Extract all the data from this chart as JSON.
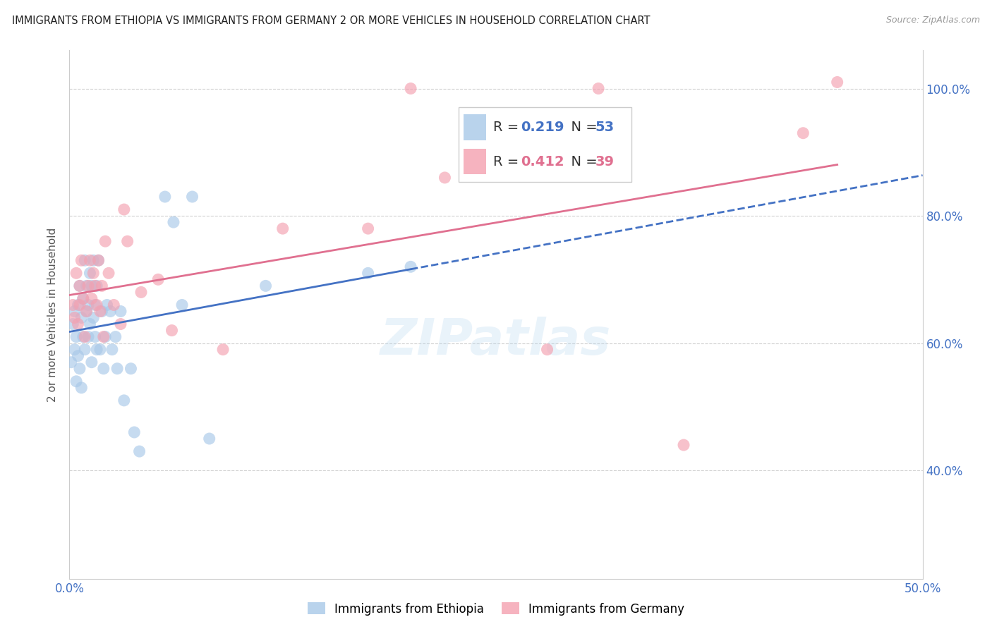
{
  "title": "IMMIGRANTS FROM ETHIOPIA VS IMMIGRANTS FROM GERMANY 2 OR MORE VEHICLES IN HOUSEHOLD CORRELATION CHART",
  "source": "Source: ZipAtlas.com",
  "ylabel": "2 or more Vehicles in Household",
  "xlim": [
    0.0,
    0.5
  ],
  "ylim": [
    0.23,
    1.06
  ],
  "x_tick_pos": [
    0.0,
    0.1,
    0.2,
    0.3,
    0.4,
    0.5
  ],
  "x_tick_labels": [
    "0.0%",
    "",
    "",
    "",
    "",
    "50.0%"
  ],
  "y_tick_pos": [
    0.4,
    0.6,
    0.8,
    1.0
  ],
  "y_tick_labels": [
    "40.0%",
    "60.0%",
    "80.0%",
    "100.0%"
  ],
  "legend_label1": "Immigrants from Ethiopia",
  "legend_label2": "Immigrants from Germany",
  "R1": "0.219",
  "N1": "53",
  "R2": "0.412",
  "N2": "39",
  "color1": "#a8c8e8",
  "color2": "#f4a0b0",
  "line_color1": "#4472c4",
  "line_color2": "#e07090",
  "watermark": "ZIPatlas",
  "ethiopia_x": [
    0.001,
    0.002,
    0.003,
    0.003,
    0.004,
    0.004,
    0.005,
    0.005,
    0.006,
    0.006,
    0.007,
    0.007,
    0.008,
    0.008,
    0.009,
    0.009,
    0.01,
    0.01,
    0.011,
    0.011,
    0.012,
    0.012,
    0.013,
    0.013,
    0.014,
    0.014,
    0.015,
    0.015,
    0.016,
    0.016,
    0.017,
    0.018,
    0.019,
    0.02,
    0.021,
    0.022,
    0.024,
    0.025,
    0.027,
    0.028,
    0.03,
    0.032,
    0.036,
    0.038,
    0.041,
    0.056,
    0.061,
    0.066,
    0.072,
    0.082,
    0.115,
    0.175,
    0.2
  ],
  "ethiopia_y": [
    0.57,
    0.63,
    0.59,
    0.65,
    0.54,
    0.61,
    0.58,
    0.66,
    0.56,
    0.69,
    0.64,
    0.53,
    0.67,
    0.61,
    0.59,
    0.73,
    0.65,
    0.69,
    0.61,
    0.66,
    0.71,
    0.63,
    0.57,
    0.69,
    0.73,
    0.64,
    0.61,
    0.66,
    0.59,
    0.69,
    0.73,
    0.59,
    0.65,
    0.56,
    0.61,
    0.66,
    0.65,
    0.59,
    0.61,
    0.56,
    0.65,
    0.51,
    0.56,
    0.46,
    0.43,
    0.83,
    0.79,
    0.66,
    0.83,
    0.45,
    0.69,
    0.71,
    0.72
  ],
  "germany_x": [
    0.002,
    0.003,
    0.004,
    0.005,
    0.006,
    0.006,
    0.007,
    0.008,
    0.009,
    0.01,
    0.011,
    0.012,
    0.013,
    0.014,
    0.015,
    0.016,
    0.017,
    0.018,
    0.019,
    0.02,
    0.021,
    0.023,
    0.026,
    0.03,
    0.032,
    0.034,
    0.042,
    0.052,
    0.06,
    0.09,
    0.125,
    0.175,
    0.2,
    0.22,
    0.28,
    0.31,
    0.36,
    0.43,
    0.45
  ],
  "germany_y": [
    0.66,
    0.64,
    0.71,
    0.63,
    0.69,
    0.66,
    0.73,
    0.67,
    0.61,
    0.65,
    0.69,
    0.73,
    0.67,
    0.71,
    0.69,
    0.66,
    0.73,
    0.65,
    0.69,
    0.61,
    0.76,
    0.71,
    0.66,
    0.63,
    0.81,
    0.76,
    0.68,
    0.7,
    0.62,
    0.59,
    0.78,
    0.78,
    1.0,
    0.86,
    0.59,
    1.0,
    0.44,
    0.93,
    1.01
  ]
}
